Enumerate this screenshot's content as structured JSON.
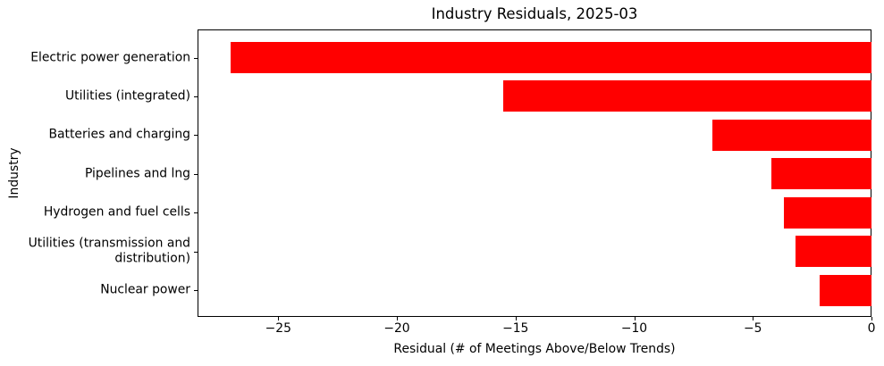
{
  "figure": {
    "background": "#ffffff",
    "text_color": "#000000",
    "spine_color": "#000000"
  },
  "chart_data": {
    "type": "bar",
    "orientation": "horizontal",
    "title": "Industry Residuals, 2025-03",
    "xlabel": "Residual (# of Meetings Above/Below Trends)",
    "ylabel": "Industry",
    "categories": [
      "Electric power generation",
      "Utilities (integrated)",
      "Batteries and charging",
      "Pipelines and lng",
      "Hydrogen and fuel cells",
      "Utilities (transmission and\ndistribution)",
      "Nuclear power"
    ],
    "values": [
      -27.0,
      -15.5,
      -6.7,
      -4.2,
      -3.7,
      -3.2,
      -2.2
    ],
    "bar_color": "#ff0000",
    "xlim": [
      -28.4,
      0
    ],
    "xticks": [
      -25,
      -20,
      -15,
      -10,
      -5,
      0
    ],
    "grid": false,
    "legend": false
  }
}
